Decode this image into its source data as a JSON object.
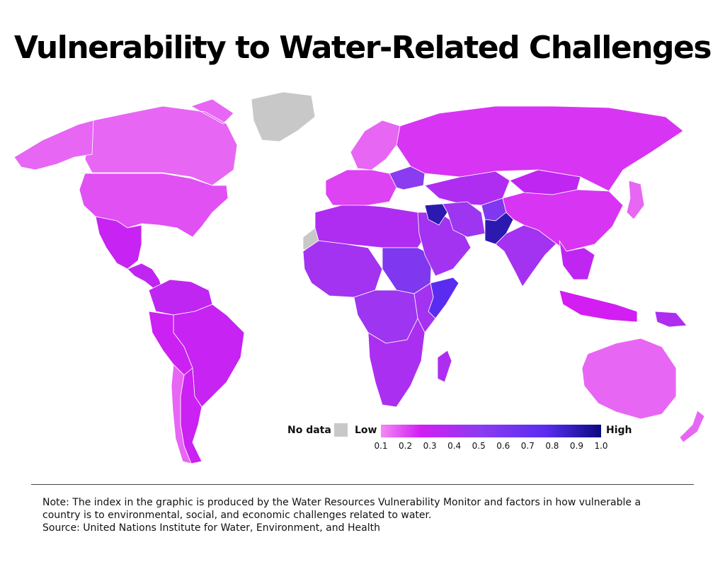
{
  "title": "Vulnerability to Water-Related Challenges",
  "colors": {
    "no_data": "#c8c8c8",
    "scale_low": "#f28af5",
    "scale_mid1": "#d21ef2",
    "scale_mid2": "#8b3cf0",
    "scale_mid3": "#5a2cf0",
    "scale_high": "#0a0a80",
    "border": "#ffffff"
  },
  "legend": {
    "no_data_label": "No data",
    "low_label": "Low",
    "high_label": "High",
    "ticks": [
      "0.1",
      "0.2",
      "0.3",
      "0.4",
      "0.5",
      "0.6",
      "0.7",
      "0.8",
      "0.9",
      "1.0"
    ]
  },
  "regions": [
    {
      "name": "Canada",
      "index": 0.15
    },
    {
      "name": "Alaska",
      "index": 0.15
    },
    {
      "name": "United States",
      "index": 0.18
    },
    {
      "name": "Mexico",
      "index": 0.28
    },
    {
      "name": "Central America",
      "index": 0.3
    },
    {
      "name": "Greenland",
      "index": null
    },
    {
      "name": "Colombia / Venezuela",
      "index": 0.3
    },
    {
      "name": "Brazil",
      "index": 0.28
    },
    {
      "name": "Peru / Bolivia",
      "index": 0.27
    },
    {
      "name": "Argentina",
      "index": 0.27
    },
    {
      "name": "Chile",
      "index": 0.15
    },
    {
      "name": "Western Sahara",
      "index": null
    },
    {
      "name": "North Africa",
      "index": 0.35
    },
    {
      "name": "West Africa",
      "index": 0.38
    },
    {
      "name": "Sudan",
      "index": 0.5
    },
    {
      "name": "Central Africa",
      "index": 0.4
    },
    {
      "name": "Somalia",
      "index": 0.65
    },
    {
      "name": "East Africa",
      "index": 0.38
    },
    {
      "name": "Southern Africa",
      "index": 0.36
    },
    {
      "name": "Madagascar",
      "index": 0.35
    },
    {
      "name": "Western Europe",
      "index": 0.2
    },
    {
      "name": "Scandinavia",
      "index": 0.15
    },
    {
      "name": "Ukraine",
      "index": 0.45
    },
    {
      "name": "Russia",
      "index": 0.22
    },
    {
      "name": "Central Asia",
      "index": 0.35
    },
    {
      "name": "Arabian Peninsula",
      "index": 0.38
    },
    {
      "name": "Iraq",
      "index": 0.85
    },
    {
      "name": "Iran",
      "index": 0.4
    },
    {
      "name": "Afghanistan",
      "index": 0.5
    },
    {
      "name": "Pakistan",
      "index": 0.85
    },
    {
      "name": "India",
      "index": 0.38
    },
    {
      "name": "China",
      "index": 0.22
    },
    {
      "name": "Mongolia",
      "index": 0.3
    },
    {
      "name": "Southeast Asia",
      "index": 0.3
    },
    {
      "name": "Indonesia",
      "index": 0.25
    },
    {
      "name": "Papua New Guinea",
      "index": 0.35
    },
    {
      "name": "Japan",
      "index": 0.15
    },
    {
      "name": "Australia",
      "index": 0.15
    },
    {
      "name": "New Zealand",
      "index": 0.15
    }
  ],
  "note": {
    "line1": "Note: The index in the graphic is produced by the Water Resources Vulnerability Monitor and factors in how vulnerable a",
    "line2": "country is to environmental, social, and economic challenges related to water.",
    "source": "Source: United Nations Institute for Water, Environment, and Health"
  }
}
